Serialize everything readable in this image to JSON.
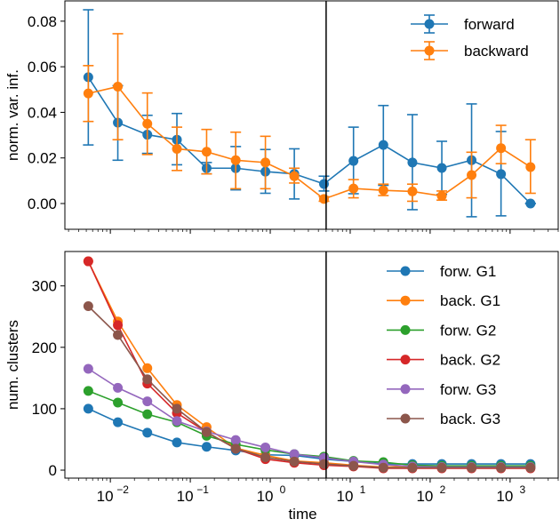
{
  "chart_data": [
    {
      "type": "line",
      "title": "",
      "xlabel": "",
      "ylabel": "norm. var. inf.",
      "xscale": "log",
      "xlim": [
        0.0027,
        4000
      ],
      "ylim": [
        -0.0113,
        0.0889
      ],
      "yticks": [
        0.0,
        0.02,
        0.04,
        0.06,
        0.08
      ],
      "ytick_labels": [
        "0.00",
        "0.02",
        "0.04",
        "0.06",
        "0.08"
      ],
      "vline_x": 5,
      "legend_position": "top-right",
      "x": [
        0.0053,
        0.0124,
        0.029,
        0.068,
        0.16,
        0.37,
        0.87,
        2.0,
        4.7,
        11,
        26,
        60,
        140,
        330,
        770,
        1800
      ],
      "series": [
        {
          "name": "forward",
          "color": "#1f77b4",
          "values": [
            0.0554,
            0.0355,
            0.0302,
            0.028,
            0.0155,
            0.0155,
            0.014,
            0.013,
            0.0086,
            0.0187,
            0.0257,
            0.018,
            0.0156,
            0.019,
            0.0129,
            0.0
          ],
          "err_low": [
            0.0257,
            0.019,
            0.022,
            0.017,
            0.013,
            0.006,
            0.0045,
            0.002,
            0.0055,
            0.0043,
            0.008,
            -0.0027,
            0.004,
            -0.0058,
            -0.0054,
            0.0
          ],
          "err_high": [
            0.085,
            0.0517,
            0.0387,
            0.0395,
            0.018,
            0.025,
            0.0237,
            0.024,
            0.012,
            0.0335,
            0.043,
            0.039,
            0.0273,
            0.0437,
            0.0316,
            0.0
          ]
        },
        {
          "name": "backward",
          "color": "#ff7f0e",
          "values": [
            0.0483,
            0.0513,
            0.035,
            0.024,
            0.0227,
            0.019,
            0.018,
            0.012,
            0.002,
            0.0066,
            0.0058,
            0.0053,
            0.0033,
            0.0125,
            0.0243,
            0.016
          ],
          "err_low": [
            0.036,
            0.028,
            0.0215,
            0.0145,
            0.013,
            0.0065,
            0.0065,
            0.009,
            0.001,
            0.0025,
            0.0035,
            0.001,
            0.0015,
            0.0025,
            0.0175,
            0.0045
          ],
          "err_high": [
            0.0605,
            0.0745,
            0.0485,
            0.0335,
            0.0325,
            0.0313,
            0.0295,
            0.0155,
            0.003,
            0.0105,
            0.0085,
            0.0085,
            0.0055,
            0.0225,
            0.0343,
            0.028
          ]
        }
      ]
    },
    {
      "type": "line",
      "title": "",
      "xlabel": "time",
      "ylabel": "num. clusters",
      "xscale": "log",
      "xlim": [
        0.0027,
        4000
      ],
      "ylim": [
        -13,
        356
      ],
      "yticks": [
        0,
        100,
        200,
        300
      ],
      "ytick_labels": [
        "0",
        "100",
        "200",
        "300"
      ],
      "xticks": [
        0.01,
        0.1,
        1,
        10,
        100,
        1000
      ],
      "xtick_labels": [
        "10",
        "10",
        "10",
        "10",
        "10",
        "10"
      ],
      "xtick_exponents": [
        "−2",
        "−1",
        "0",
        "1",
        "2",
        "3"
      ],
      "vline_x": 5,
      "legend_position": "right",
      "x": [
        0.0053,
        0.0124,
        0.029,
        0.068,
        0.16,
        0.37,
        0.87,
        2.0,
        4.7,
        11,
        26,
        60,
        140,
        330,
        770,
        1800
      ],
      "series": [
        {
          "name": "forw. G1",
          "color": "#1f77b4",
          "values": [
            100,
            78,
            61,
            45,
            38,
            32,
            25,
            24,
            18,
            14,
            10,
            10,
            10,
            10,
            10,
            10
          ]
        },
        {
          "name": "back. G1",
          "color": "#ff7f0e",
          "values": [
            340,
            242,
            166,
            106,
            70,
            36,
            24,
            15,
            12,
            8,
            5,
            6,
            6,
            6,
            6,
            6
          ]
        },
        {
          "name": "forw. G2",
          "color": "#2ca02c",
          "values": [
            129,
            110,
            91,
            78,
            56,
            42,
            33,
            26,
            22,
            15,
            13,
            8,
            7,
            7,
            7,
            7
          ]
        },
        {
          "name": "back. G2",
          "color": "#d62728",
          "values": [
            340,
            236,
            141,
            93,
            62,
            35,
            18,
            12,
            8,
            6,
            3,
            3,
            3,
            3,
            3,
            3
          ]
        },
        {
          "name": "forw. G3",
          "color": "#9467bd",
          "values": [
            165,
            134,
            112,
            80,
            63,
            49,
            37,
            26,
            20,
            14,
            9,
            6,
            5,
            5,
            5,
            5
          ]
        },
        {
          "name": "back. G3",
          "color": "#8c564b",
          "values": [
            267,
            220,
            148,
            100,
            62,
            35,
            21,
            14,
            10,
            7,
            4,
            4,
            4,
            4,
            4,
            4
          ]
        }
      ]
    }
  ]
}
